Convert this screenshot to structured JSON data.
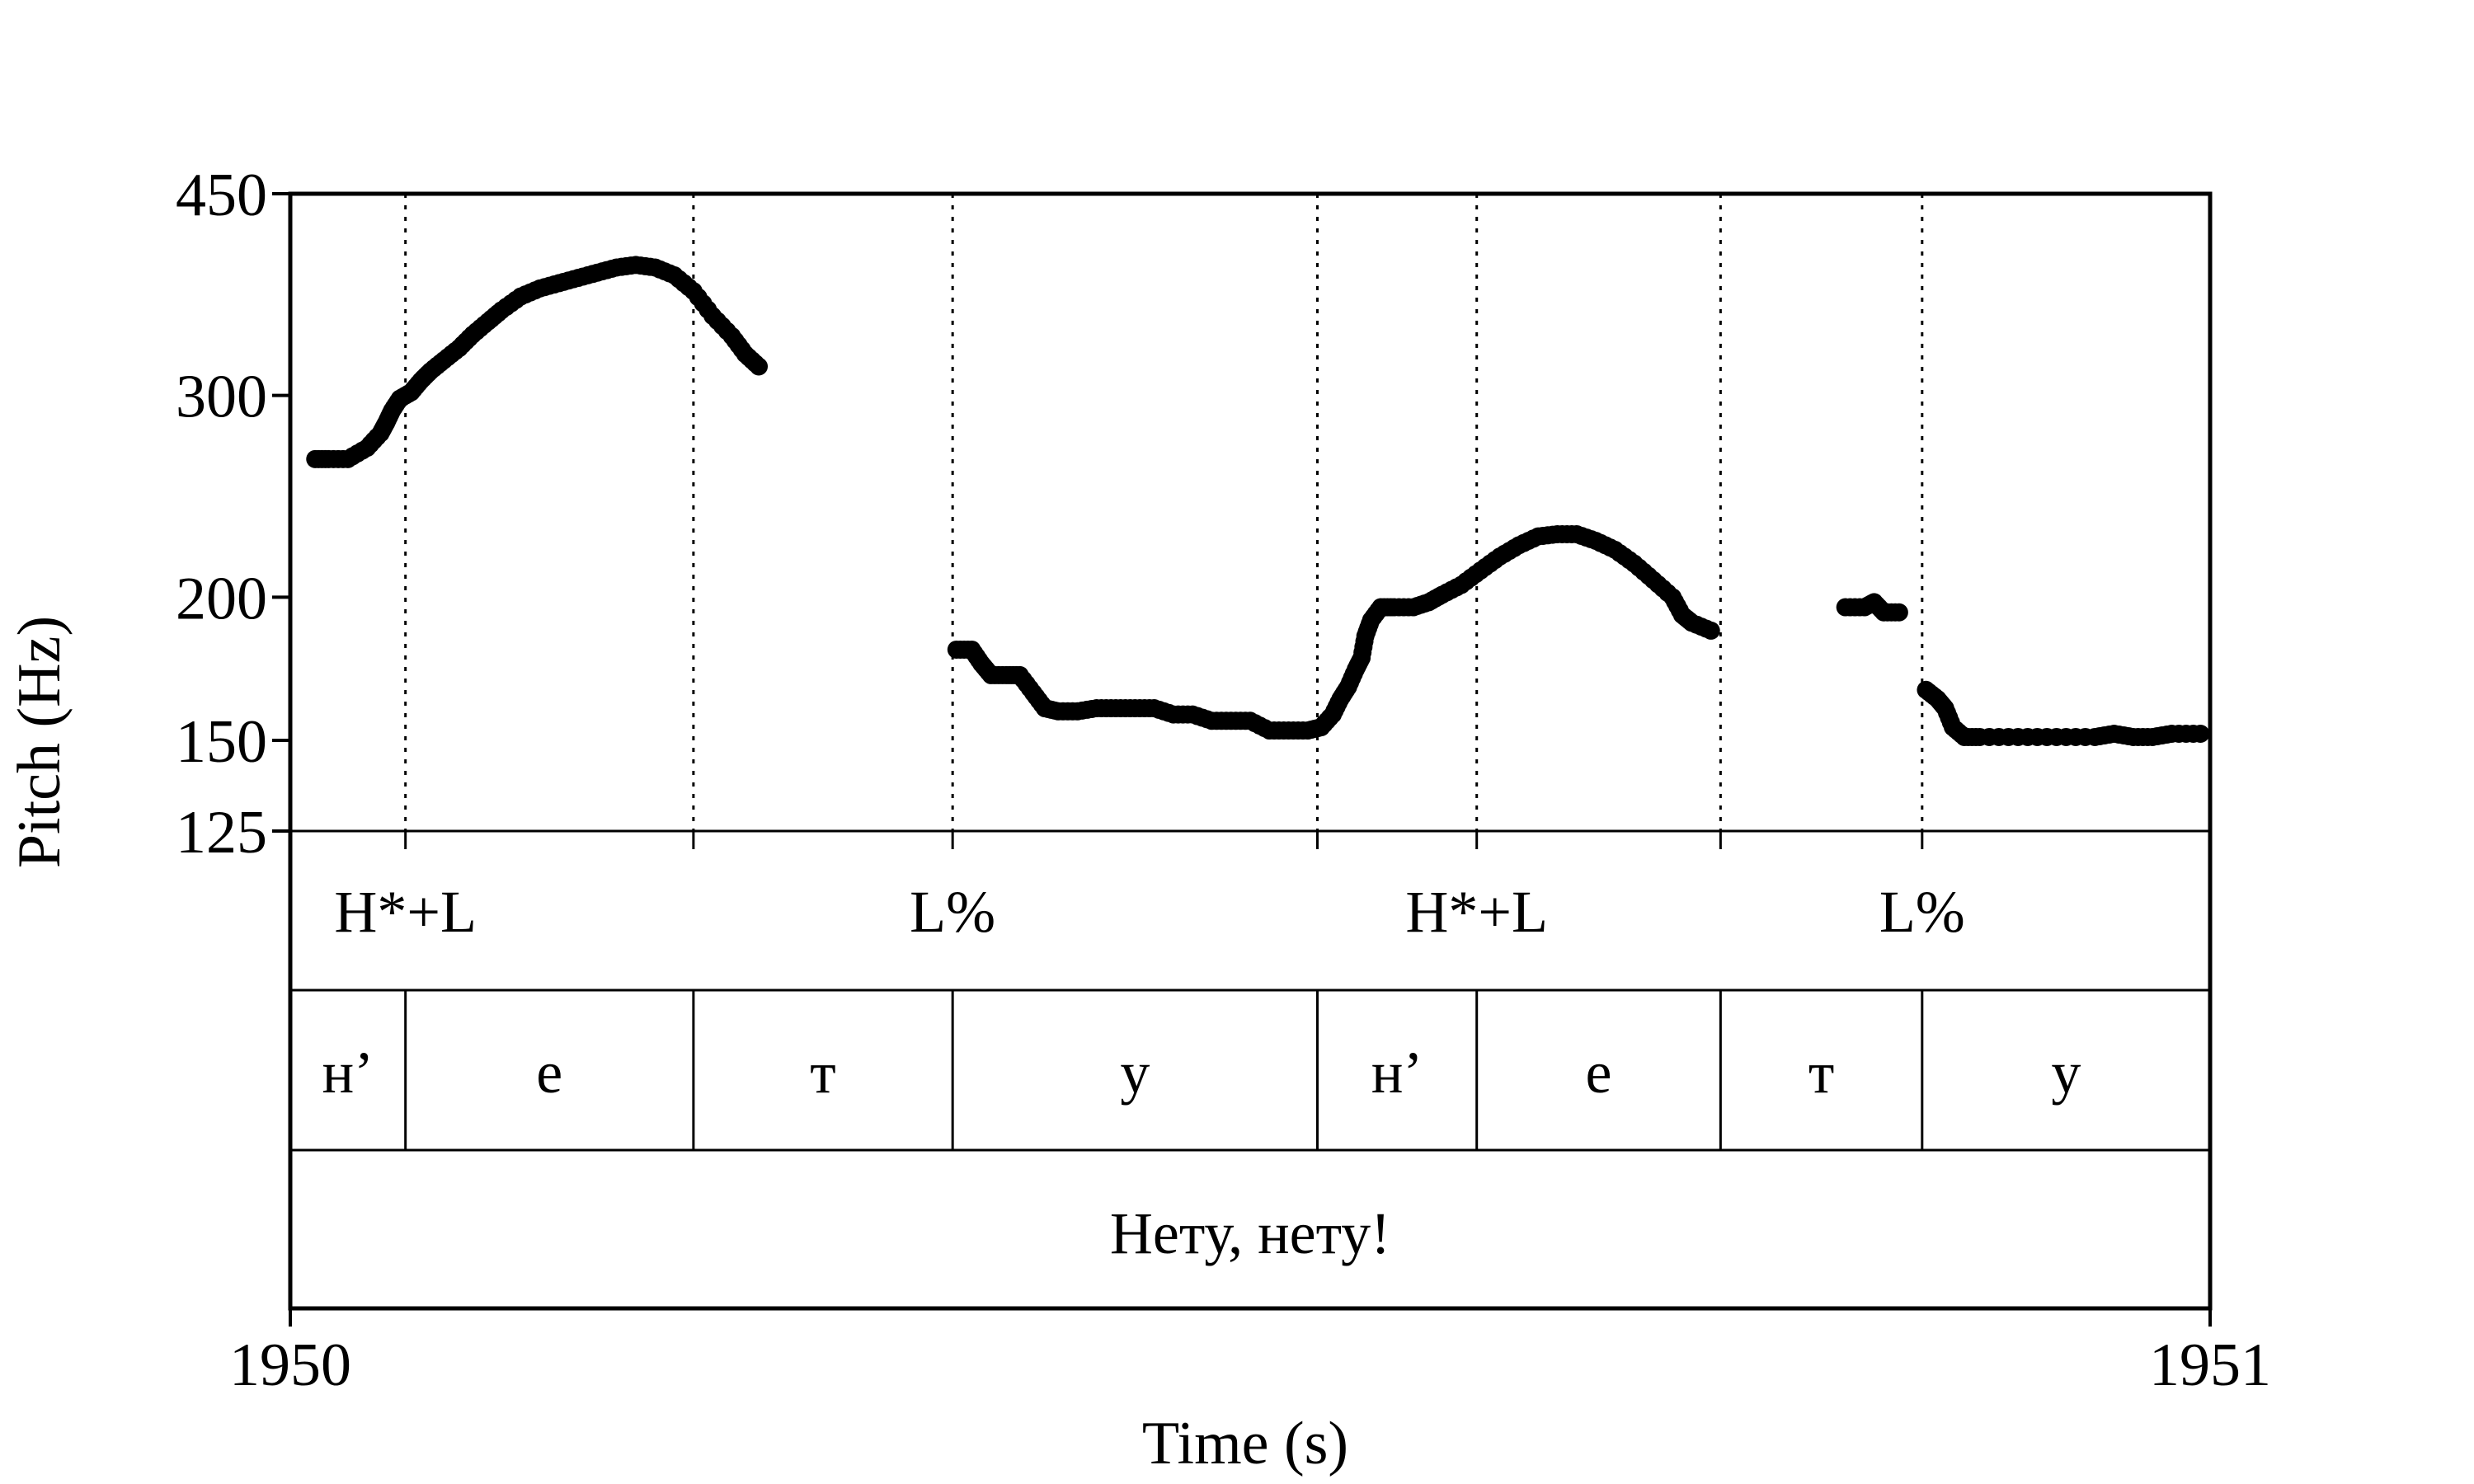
{
  "chart_data": {
    "type": "scatter",
    "xlabel": "Time (s)",
    "ylabel": "Pitch (Hz)",
    "x_tick_labels": [
      "1950",
      "1951"
    ],
    "xlim": [
      1950,
      1951
    ],
    "ylim": [
      125,
      450
    ],
    "y_scale": "log",
    "y_ticks": [
      125,
      150,
      200,
      300,
      450
    ],
    "grid": false,
    "boundaries": [
      1950.06,
      1950.21,
      1950.345,
      1950.535,
      1950.618,
      1950.745,
      1950.85
    ],
    "tone_tier": [
      {
        "label": "H*+L",
        "x": 1950.06
      },
      {
        "label": "L%",
        "x": 1950.345
      },
      {
        "label": "H*+L",
        "x": 1950.618
      },
      {
        "label": "L%",
        "x": 1950.85
      }
    ],
    "segment_tier": [
      "н’",
      "е",
      "т",
      "у",
      "н’",
      "е",
      "т",
      "у"
    ],
    "sentence_tier": "Нету, нету!",
    "series": [
      {
        "points": [
          [
            1950.013,
            264
          ],
          [
            1950.02,
            264
          ],
          [
            1950.03,
            264
          ],
          [
            1950.04,
            270
          ],
          [
            1950.047,
            278
          ],
          [
            1950.05,
            284
          ],
          [
            1950.053,
            291
          ],
          [
            1950.057,
            298
          ],
          [
            1950.063,
            302
          ],
          [
            1950.068,
            309
          ],
          [
            1950.073,
            315
          ],
          [
            1950.08,
            322
          ],
          [
            1950.088,
            330
          ],
          [
            1950.095,
            339
          ],
          [
            1950.103,
            348
          ],
          [
            1950.11,
            356
          ],
          [
            1950.12,
            366
          ],
          [
            1950.13,
            372
          ],
          [
            1950.14,
            376
          ],
          [
            1950.15,
            380
          ],
          [
            1950.16,
            384
          ],
          [
            1950.17,
            388
          ],
          [
            1950.18,
            390
          ],
          [
            1950.19,
            388
          ],
          [
            1950.2,
            382
          ],
          [
            1950.21,
            370
          ],
          [
            1950.22,
            352
          ],
          [
            1950.23,
            338
          ],
          [
            1950.237,
            326
          ],
          [
            1950.244,
            318
          ]
        ]
      },
      {
        "points": [
          [
            1950.347,
            180
          ],
          [
            1950.355,
            180
          ],
          [
            1950.36,
            175
          ],
          [
            1950.365,
            171
          ],
          [
            1950.373,
            171
          ],
          [
            1950.38,
            171
          ],
          [
            1950.387,
            165
          ],
          [
            1950.393,
            160
          ],
          [
            1950.4,
            159
          ],
          [
            1950.41,
            159
          ],
          [
            1950.42,
            160
          ],
          [
            1950.43,
            160
          ],
          [
            1950.44,
            160
          ],
          [
            1950.45,
            160
          ],
          [
            1950.46,
            158
          ],
          [
            1950.47,
            158
          ],
          [
            1950.48,
            156
          ],
          [
            1950.49,
            156
          ],
          [
            1950.5,
            156
          ],
          [
            1950.51,
            153
          ],
          [
            1950.52,
            153
          ],
          [
            1950.53,
            153
          ],
          [
            1950.537,
            154
          ],
          [
            1950.543,
            158
          ],
          [
            1950.547,
            163
          ],
          [
            1950.551,
            167
          ],
          [
            1950.555,
            173
          ],
          [
            1950.558,
            177
          ],
          [
            1950.56,
            185
          ],
          [
            1950.563,
            191
          ],
          [
            1950.568,
            196
          ],
          [
            1950.575,
            196
          ],
          [
            1950.585,
            196
          ],
          [
            1950.593,
            198
          ],
          [
            1950.6,
            201
          ],
          [
            1950.61,
            205
          ],
          [
            1950.62,
            211
          ],
          [
            1950.63,
            217
          ],
          [
            1950.64,
            222
          ],
          [
            1950.65,
            226
          ],
          [
            1950.66,
            227
          ],
          [
            1950.67,
            227
          ],
          [
            1950.68,
            224
          ],
          [
            1950.69,
            220
          ],
          [
            1950.7,
            214
          ],
          [
            1950.71,
            207
          ],
          [
            1950.72,
            200
          ],
          [
            1950.725,
            193
          ],
          [
            1950.73,
            190
          ],
          [
            1950.74,
            187
          ]
        ]
      },
      {
        "points": [
          [
            1950.81,
            196
          ],
          [
            1950.82,
            196
          ],
          [
            1950.825,
            198
          ],
          [
            1950.83,
            194
          ],
          [
            1950.838,
            194
          ]
        ]
      },
      {
        "points": [
          [
            1950.852,
            166
          ],
          [
            1950.858,
            163
          ],
          [
            1950.862,
            160
          ],
          [
            1950.866,
            154
          ],
          [
            1950.872,
            151
          ],
          [
            1950.88,
            151
          ],
          [
            1950.9,
            151
          ],
          [
            1950.92,
            151
          ],
          [
            1950.94,
            151
          ],
          [
            1950.95,
            152
          ],
          [
            1950.96,
            151
          ],
          [
            1950.97,
            151
          ],
          [
            1950.98,
            152
          ],
          [
            1950.995,
            152
          ]
        ]
      }
    ]
  }
}
